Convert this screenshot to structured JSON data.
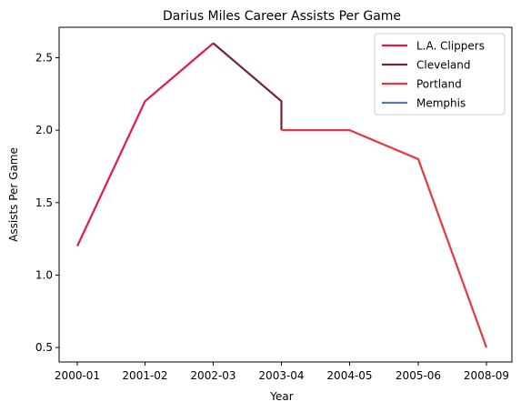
{
  "chart_data": {
    "type": "line",
    "title": "Darius Miles Career Assists Per Game",
    "xlabel": "Year",
    "ylabel": "Assists Per Game",
    "categories": [
      "2000-01",
      "2001-02",
      "2002-03",
      "2003-04",
      "2004-05",
      "2005-06",
      "2008-09"
    ],
    "ylim": [
      0.4,
      2.71
    ],
    "yticks": [
      "0.5",
      "1.0",
      "1.5",
      "2.0",
      "2.5"
    ],
    "ytick_values": [
      0.5,
      1.0,
      1.5,
      2.0,
      2.5
    ],
    "grid": false,
    "legend_position": "top-right",
    "series": [
      {
        "name": "L.A. Clippers",
        "color": "#e31b4a",
        "x": [
          "2000-01",
          "2001-02",
          "2002-03"
        ],
        "y": [
          1.2,
          2.2,
          2.6
        ]
      },
      {
        "name": "Cleveland",
        "color": "#6f2441",
        "x": [
          "2002-03",
          "2003-04",
          "2003-04"
        ],
        "y": [
          2.6,
          2.2,
          2.0
        ]
      },
      {
        "name": "Portland",
        "color": "#e03a3e",
        "x": [
          "2003-04",
          "2004-05",
          "2005-06",
          "2008-09"
        ],
        "y": [
          2.0,
          2.0,
          1.8,
          0.5
        ]
      },
      {
        "name": "Memphis",
        "color": "#5d76a9",
        "x": [],
        "y": []
      }
    ]
  }
}
